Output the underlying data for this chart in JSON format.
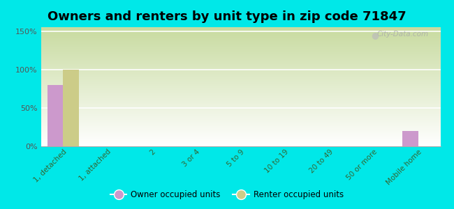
{
  "title": "Owners and renters by unit type in zip code 71847",
  "categories": [
    "1, detached",
    "1, attached",
    "2",
    "3 or 4",
    "5 to 9",
    "10 to 19",
    "20 to 49",
    "50 or more",
    "Mobile home"
  ],
  "owner_values": [
    80,
    0,
    0,
    0,
    0,
    0,
    0,
    0,
    20
  ],
  "renter_values": [
    100,
    0,
    0,
    0,
    0,
    0,
    0,
    0,
    0
  ],
  "owner_color": "#cc99cc",
  "renter_color": "#cccc88",
  "owner_label": "Owner occupied units",
  "renter_label": "Renter occupied units",
  "background_color": "#00e8e8",
  "yticks": [
    0,
    50,
    100,
    150
  ],
  "ylim": [
    0,
    155
  ],
  "bar_width": 0.35,
  "title_fontsize": 13,
  "watermark": "City-Data.com"
}
